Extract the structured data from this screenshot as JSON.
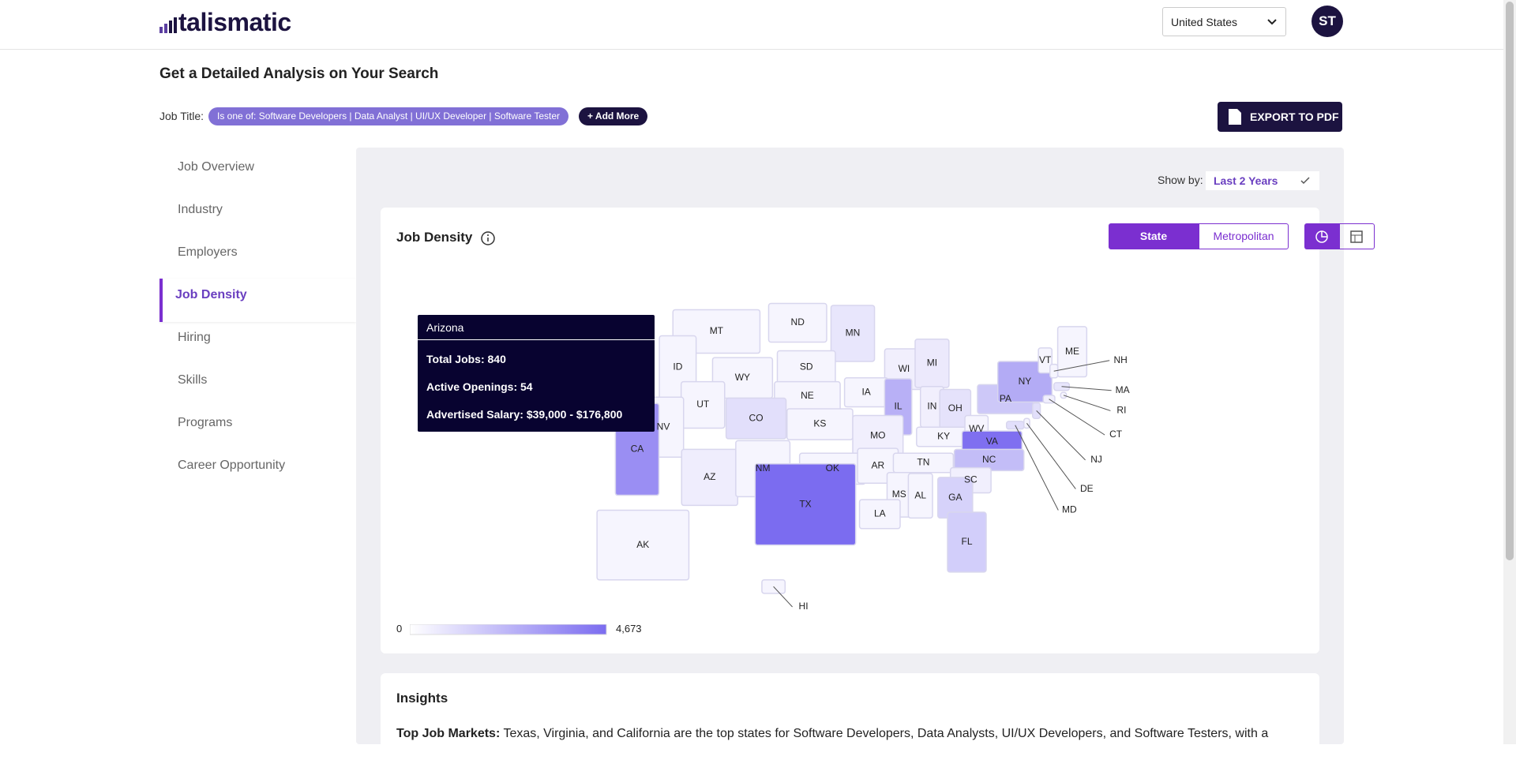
{
  "header": {
    "logo": "talismatic",
    "country": "United States",
    "avatar": "ST"
  },
  "page": {
    "title": "Get a Detailed Analysis on Your Search",
    "job_title_label": "Job Title:",
    "job_title_filter": "Is one of: Software Developers | Data Analyst | UI/UX Developer | Software Tester",
    "add_more": "+ Add More",
    "export": "EXPORT TO PDF"
  },
  "sidebar": {
    "items": [
      "Job Overview",
      "Industry",
      "Employers",
      "Job Density",
      "Hiring",
      "Skills",
      "Programs",
      "Career Opportunity"
    ],
    "active": 3
  },
  "panel": {
    "show_by_label": "Show by:",
    "show_by_value": "Last 2 Years"
  },
  "job_density": {
    "title": "Job Density",
    "toggle": [
      "State",
      "Metropolitan"
    ],
    "active_toggle": 0,
    "map": {
      "states": [
        {
          "abbr": "MT",
          "color": "#f6f5fe"
        },
        {
          "abbr": "ND",
          "color": "#f6f5fe"
        },
        {
          "abbr": "MN",
          "color": "#e8e6fc"
        },
        {
          "abbr": "ID",
          "color": "#f6f5fe"
        },
        {
          "abbr": "WY",
          "color": "#f6f5fe"
        },
        {
          "abbr": "SD",
          "color": "#f6f5fe"
        },
        {
          "abbr": "WI",
          "color": "#f1effd"
        },
        {
          "abbr": "MI",
          "color": "#ece9fc"
        },
        {
          "abbr": "NE",
          "color": "#f6f5fe"
        },
        {
          "abbr": "IA",
          "color": "#f6f5fe"
        },
        {
          "abbr": "IL",
          "color": "#b8b0f6"
        },
        {
          "abbr": "IN",
          "color": "#f1effd"
        },
        {
          "abbr": "OH",
          "color": "#e5e2fb"
        },
        {
          "abbr": "PA",
          "color": "#cdc8f8"
        },
        {
          "abbr": "NY",
          "color": "#b3abf5"
        },
        {
          "abbr": "VT",
          "color": "#f6f5fe"
        },
        {
          "abbr": "ME",
          "color": "#f6f5fe"
        },
        {
          "abbr": "UT",
          "color": "#f6f5fe"
        },
        {
          "abbr": "NV",
          "color": "#f6f5fe"
        },
        {
          "abbr": "CO",
          "color": "#e2dffb"
        },
        {
          "abbr": "KS",
          "color": "#f6f5fe"
        },
        {
          "abbr": "MO",
          "color": "#f1effd"
        },
        {
          "abbr": "KY",
          "color": "#f6f5fe"
        },
        {
          "abbr": "WV",
          "color": "#f6f5fe"
        },
        {
          "abbr": "VA",
          "color": "#7f6ff0"
        },
        {
          "abbr": "CA",
          "color": "#9a8ef3"
        },
        {
          "abbr": "AZ",
          "color": "#efedfd"
        },
        {
          "abbr": "NM",
          "color": "#f6f5fe"
        },
        {
          "abbr": "OK",
          "color": "#f6f5fe"
        },
        {
          "abbr": "AR",
          "color": "#f6f5fe"
        },
        {
          "abbr": "TN",
          "color": "#f6f5fe"
        },
        {
          "abbr": "NC",
          "color": "#c3bdf7"
        },
        {
          "abbr": "SC",
          "color": "#f1effd"
        },
        {
          "abbr": "MS",
          "color": "#f6f5fe"
        },
        {
          "abbr": "AL",
          "color": "#f6f5fe"
        },
        {
          "abbr": "GA",
          "color": "#d6d2fa"
        },
        {
          "abbr": "TX",
          "color": "#7b6cf0"
        },
        {
          "abbr": "LA",
          "color": "#f6f5fe"
        },
        {
          "abbr": "FL",
          "color": "#d2cefa"
        },
        {
          "abbr": "AK",
          "color": "#f6f5fe"
        },
        {
          "abbr": "NH",
          "color": "#f6f5fe"
        },
        {
          "abbr": "MA",
          "color": "#e8e6fc"
        },
        {
          "abbr": "RI",
          "color": "#f6f5fe"
        },
        {
          "abbr": "CT",
          "color": "#f1effd"
        },
        {
          "abbr": "NJ",
          "color": "#e2dffb"
        },
        {
          "abbr": "DE",
          "color": "#f6f5fe"
        },
        {
          "abbr": "MD",
          "color": "#e2dffb"
        },
        {
          "abbr": "HI",
          "color": "#f6f5fe"
        }
      ]
    },
    "tooltip": {
      "title": "Arizona",
      "lines": [
        "Total Jobs: 840",
        "Active Openings: 54",
        "Advertised Salary: $39,000 - $176,800"
      ]
    },
    "legend": {
      "min": "0",
      "max": "4,673",
      "color_low": "#ffffff",
      "color_high": "#7b6cf0"
    }
  },
  "insights": {
    "title": "Insights",
    "lead": "Top Job Markets:",
    "text": "Texas, Virginia, and California are the top states for Software Developers, Data Analysts, UI/UX Developers, and Software Testers, with a"
  }
}
